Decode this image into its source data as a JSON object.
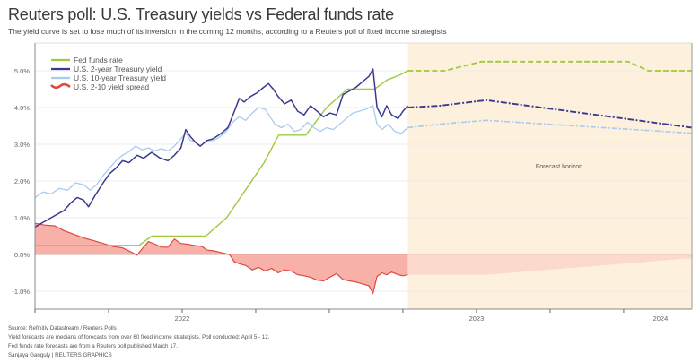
{
  "header": {
    "title": "Reuters poll: U.S. Treasury yields vs Federal funds rate",
    "subtitle": "The yield curve is set to lose much of its inversion in the coming 12 months, according to a Reuters poll of fixed income strategists"
  },
  "footer": {
    "source": "Source: Refinitiv Datastream / Reuters Polls",
    "note1": "Yield forecasts are medians of forecasts from over 60 fixed income strategists. Poll conducted: April 5 - 12.",
    "note2": "Fed funds rate forecasts are from a Reuters poll published March 17.",
    "credit": "Sanjaya Ganguly | REUTERS GRAPHICS"
  },
  "chart_data": {
    "type": "line",
    "title": "Reuters poll: U.S. Treasury yields vs Federal funds rate",
    "xlabel": "",
    "ylabel": "",
    "x_unit": "months from start of axis (quarterly ticks)",
    "xlim": [
      0,
      26.8
    ],
    "ylim": [
      -1.5,
      5.7
    ],
    "yticks": [
      -1.0,
      0.0,
      1.0,
      2.0,
      3.0,
      4.0,
      5.0
    ],
    "ytick_labels": [
      "-1.0%",
      "0.0%",
      "1.0%",
      "2.0%",
      "3.0%",
      "4.0%",
      "5.0%"
    ],
    "xticks": [
      0,
      3,
      6,
      9,
      12,
      15,
      18,
      21,
      24
    ],
    "xtick_labels": [
      {
        "x": 6,
        "label": "2022"
      },
      {
        "x": 18,
        "label": "2023"
      },
      {
        "x": 25.5,
        "label": "2024"
      }
    ],
    "grid": true,
    "legend_position": "top-left",
    "forecast_start": 15.2,
    "annotation": "Forecast horizon",
    "colors": {
      "fed": "#9ccb3b",
      "two_year": "#3b3a8f",
      "ten_year": "#a9cbef",
      "spread_line": "#e0483d",
      "spread_fill": "#f7a39a",
      "forecast_bg": "#fdf1de"
    },
    "series": [
      {
        "name": "Fed funds rate",
        "key": "fed",
        "points": [
          [
            0,
            0.25
          ],
          [
            5,
            0.25
          ],
          [
            5.6,
            0.5
          ],
          [
            8.2,
            0.5
          ],
          [
            9.2,
            1.0
          ],
          [
            10.1,
            1.75
          ],
          [
            11.0,
            2.5
          ],
          [
            11.7,
            3.25
          ],
          [
            13.0,
            3.25
          ],
          [
            14.0,
            4.0
          ],
          [
            14.5,
            4.25
          ],
          [
            15.0,
            4.5
          ],
          [
            16.3,
            4.5
          ],
          [
            16.9,
            4.75
          ],
          [
            17.5,
            4.88
          ],
          [
            17.9,
            5.0
          ]
        ],
        "forecast": [
          [
            15.2,
            5.0
          ],
          [
            16.2,
            5.0
          ],
          [
            16.7,
            5.0
          ],
          [
            18.2,
            5.25
          ],
          [
            24.2,
            5.25
          ],
          [
            25.0,
            5.0
          ],
          [
            26.8,
            5.0
          ]
        ]
      },
      {
        "name": "U.S. 2-year Treasury yield",
        "key": "two_year",
        "points": [
          [
            0,
            0.75
          ],
          [
            0.6,
            0.9
          ],
          [
            1.2,
            1.05
          ],
          [
            1.8,
            1.2
          ],
          [
            2.2,
            1.4
          ],
          [
            2.6,
            1.55
          ],
          [
            3.0,
            1.48
          ],
          [
            3.3,
            1.3
          ],
          [
            3.7,
            1.6
          ],
          [
            4.2,
            1.95
          ],
          [
            4.6,
            2.2
          ],
          [
            5.0,
            2.35
          ],
          [
            5.4,
            2.55
          ],
          [
            5.8,
            2.5
          ],
          [
            6.3,
            2.7
          ],
          [
            6.7,
            2.62
          ],
          [
            7.2,
            2.78
          ],
          [
            7.7,
            2.63
          ],
          [
            8.2,
            2.55
          ],
          [
            8.6,
            2.7
          ],
          [
            9.0,
            2.9
          ],
          [
            9.3,
            3.4
          ],
          [
            9.6,
            3.2
          ],
          [
            9.9,
            3.05
          ],
          [
            10.2,
            2.95
          ],
          [
            10.6,
            3.1
          ],
          [
            11.0,
            3.15
          ],
          [
            11.5,
            3.3
          ],
          [
            11.9,
            3.45
          ],
          [
            12.3,
            3.9
          ],
          [
            12.6,
            4.25
          ],
          [
            12.9,
            4.15
          ],
          [
            13.3,
            4.3
          ],
          [
            13.7,
            4.4
          ],
          [
            14.1,
            4.55
          ],
          [
            14.4,
            4.65
          ],
          [
            14.7,
            4.5
          ],
          [
            15.0,
            4.3
          ],
          [
            15.4,
            4.1
          ],
          [
            15.8,
            4.2
          ],
          [
            16.2,
            3.9
          ],
          [
            16.6,
            3.8
          ],
          [
            17.0,
            4.05
          ],
          [
            17.4,
            3.9
          ],
          [
            17.8,
            3.75
          ],
          [
            18.2,
            3.85
          ],
          [
            18.6,
            3.8
          ],
          [
            19.0,
            4.35
          ],
          [
            19.4,
            4.45
          ],
          [
            19.8,
            4.55
          ],
          [
            20.2,
            4.7
          ],
          [
            20.6,
            4.85
          ],
          [
            20.85,
            5.05
          ],
          [
            21.1,
            4.0
          ],
          [
            21.4,
            3.75
          ],
          [
            21.7,
            4.05
          ],
          [
            22.0,
            3.8
          ],
          [
            22.4,
            3.7
          ],
          [
            22.7,
            3.9
          ],
          [
            23.0,
            4.05
          ]
        ],
        "forecast": [
          [
            15.2,
            4.0
          ],
          [
            16.5,
            4.05
          ],
          [
            18.4,
            4.2
          ],
          [
            26.8,
            3.45
          ]
        ]
      },
      {
        "name": "U.S. 10-year Treasury yield",
        "key": "ten_year",
        "points": [
          [
            0,
            1.55
          ],
          [
            0.5,
            1.7
          ],
          [
            1.0,
            1.65
          ],
          [
            1.5,
            1.8
          ],
          [
            2.0,
            1.75
          ],
          [
            2.5,
            1.95
          ],
          [
            3.0,
            1.9
          ],
          [
            3.4,
            1.75
          ],
          [
            3.8,
            1.9
          ],
          [
            4.2,
            2.15
          ],
          [
            4.6,
            2.35
          ],
          [
            5.0,
            2.55
          ],
          [
            5.4,
            2.7
          ],
          [
            5.8,
            2.8
          ],
          [
            6.2,
            2.95
          ],
          [
            6.6,
            2.85
          ],
          [
            7.0,
            2.9
          ],
          [
            7.4,
            2.82
          ],
          [
            7.8,
            2.88
          ],
          [
            8.2,
            2.82
          ],
          [
            8.6,
            2.95
          ],
          [
            9.0,
            3.15
          ],
          [
            9.3,
            3.3
          ],
          [
            9.6,
            3.1
          ],
          [
            9.9,
            3.05
          ],
          [
            10.2,
            2.95
          ],
          [
            10.6,
            3.1
          ],
          [
            11.0,
            3.1
          ],
          [
            11.4,
            3.2
          ],
          [
            11.8,
            3.35
          ],
          [
            12.2,
            3.6
          ],
          [
            12.6,
            3.75
          ],
          [
            13.0,
            3.65
          ],
          [
            13.4,
            3.85
          ],
          [
            13.8,
            4.0
          ],
          [
            14.2,
            3.95
          ],
          [
            14.5,
            3.75
          ],
          [
            14.8,
            3.55
          ],
          [
            15.2,
            3.45
          ],
          [
            15.6,
            3.55
          ],
          [
            16.0,
            3.35
          ],
          [
            16.4,
            3.4
          ],
          [
            16.8,
            3.6
          ],
          [
            17.2,
            3.45
          ],
          [
            17.6,
            3.35
          ],
          [
            18.0,
            3.45
          ],
          [
            18.4,
            3.4
          ],
          [
            18.8,
            3.55
          ],
          [
            19.2,
            3.7
          ],
          [
            19.6,
            3.85
          ],
          [
            20.0,
            3.9
          ],
          [
            20.4,
            3.95
          ],
          [
            20.85,
            4.05
          ],
          [
            21.1,
            3.55
          ],
          [
            21.4,
            3.4
          ],
          [
            21.8,
            3.55
          ],
          [
            22.2,
            3.35
          ],
          [
            22.6,
            3.3
          ],
          [
            23.0,
            3.45
          ]
        ],
        "forecast": [
          [
            15.2,
            3.45
          ],
          [
            16.5,
            3.55
          ],
          [
            18.4,
            3.65
          ],
          [
            26.8,
            3.3
          ]
        ]
      },
      {
        "name": "U.S. 2-10 yield spread",
        "key": "spread",
        "points": [
          [
            0,
            0.85
          ],
          [
            0.6,
            0.8
          ],
          [
            1.2,
            0.78
          ],
          [
            1.8,
            0.65
          ],
          [
            2.4,
            0.55
          ],
          [
            3.0,
            0.45
          ],
          [
            3.6,
            0.38
          ],
          [
            4.2,
            0.3
          ],
          [
            4.8,
            0.22
          ],
          [
            5.4,
            0.18
          ],
          [
            6.0,
            0.05
          ],
          [
            6.3,
            -0.02
          ],
          [
            6.6,
            0.15
          ],
          [
            7.0,
            0.35
          ],
          [
            7.4,
            0.28
          ],
          [
            7.8,
            0.2
          ],
          [
            8.2,
            0.2
          ],
          [
            8.6,
            0.42
          ],
          [
            9.0,
            0.3
          ],
          [
            9.4,
            0.28
          ],
          [
            9.8,
            0.25
          ],
          [
            10.3,
            0.22
          ],
          [
            10.6,
            0.12
          ],
          [
            11.0,
            0.1
          ],
          [
            11.5,
            0.05
          ],
          [
            12.0,
            0.0
          ],
          [
            12.3,
            -0.2
          ],
          [
            12.6,
            -0.25
          ],
          [
            13.0,
            -0.3
          ],
          [
            13.4,
            -0.42
          ],
          [
            13.8,
            -0.35
          ],
          [
            14.2,
            -0.45
          ],
          [
            14.6,
            -0.38
          ],
          [
            15.0,
            -0.5
          ],
          [
            15.4,
            -0.42
          ],
          [
            15.8,
            -0.45
          ],
          [
            16.2,
            -0.55
          ],
          [
            16.6,
            -0.58
          ],
          [
            17.0,
            -0.62
          ],
          [
            17.4,
            -0.7
          ],
          [
            17.8,
            -0.72
          ],
          [
            18.2,
            -0.62
          ],
          [
            18.6,
            -0.52
          ],
          [
            19.0,
            -0.68
          ],
          [
            19.4,
            -0.72
          ],
          [
            19.8,
            -0.75
          ],
          [
            20.2,
            -0.8
          ],
          [
            20.6,
            -0.85
          ],
          [
            20.85,
            -1.05
          ],
          [
            21.1,
            -0.6
          ],
          [
            21.4,
            -0.5
          ],
          [
            21.7,
            -0.55
          ],
          [
            22.0,
            -0.48
          ],
          [
            22.4,
            -0.55
          ],
          [
            22.7,
            -0.58
          ],
          [
            23.0,
            -0.55
          ]
        ],
        "forecast": [
          [
            15.2,
            -0.55
          ],
          [
            18.4,
            -0.55
          ],
          [
            26.8,
            -0.1
          ]
        ]
      }
    ]
  }
}
